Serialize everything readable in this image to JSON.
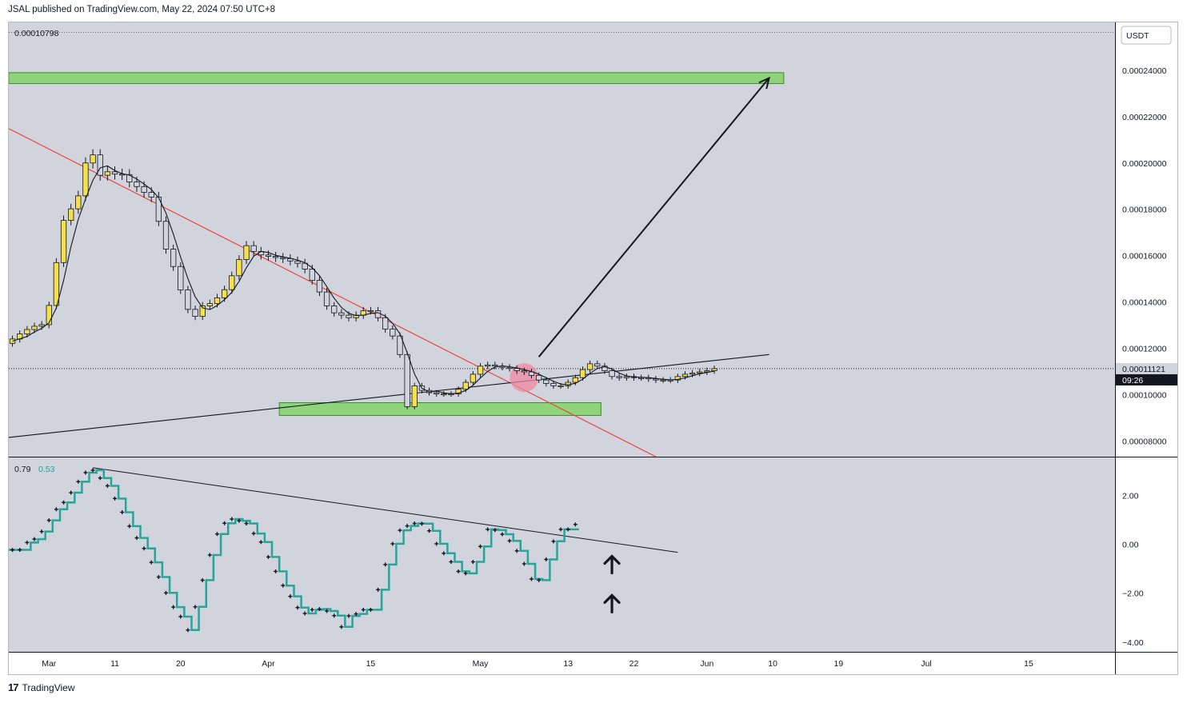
{
  "header": {
    "published_text": "JSAL published on TradingView.com, May 22, 2024 07:50 UTC+8"
  },
  "footer": {
    "brand": "TradingView",
    "logo_text": "17"
  },
  "colors": {
    "panel_bg": "#d1d4dc",
    "axis_bg": "#ffffff",
    "zone_fill": "#8fd47a",
    "zone_stroke": "#3a8f2a",
    "candle_up": "#f5e04a",
    "candle_down": "#d1d4dc",
    "trendline_red": "#f03a3a",
    "trendline_black": "#131722",
    "osc_line": "#26a69a",
    "circle": "#f08aa0"
  },
  "chart_data": {
    "type": "candlestick",
    "main_panel": {
      "currency": "USDT",
      "top_label": "0.00010798",
      "y_ticks": [
        "0.00024000",
        "0.00022000",
        "0.00020000",
        "0.00018000",
        "0.00016000",
        "0.00014000",
        "0.00012000",
        "0.00010000",
        "0.00008000"
      ],
      "y_tick_values": [
        0.00024,
        0.00022,
        0.0002,
        0.00018,
        0.00016,
        0.00014,
        0.00012,
        0.0001,
        8e-05
      ],
      "y_range": [
        7.32e-05,
        0.0002607
      ],
      "current_price": "0.00011121",
      "current_price_value": 0.00011121,
      "countdown": "09:26",
      "x_day_range": [
        0,
        108
      ],
      "candles_close": [
        0.000124,
        0.0001262,
        0.0001281,
        0.0001295,
        0.0001302,
        0.0001385,
        0.000157,
        0.0001752,
        0.0001802,
        0.0001858,
        0.0002,
        0.0002035,
        0.0001947,
        0.0001962,
        0.0001952,
        0.000195,
        0.0001918,
        0.0001898,
        0.0001873,
        0.0001853,
        0.0001748,
        0.0001628,
        0.0001553,
        0.0001452,
        0.0001368,
        0.0001338,
        0.0001383,
        0.0001393,
        0.0001418,
        0.0001453,
        0.0001513,
        0.0001583,
        0.0001643,
        0.0001618,
        0.0001603,
        0.0001597,
        0.0001592,
        0.0001587,
        0.0001577,
        0.0001567,
        0.0001542,
        0.0001493,
        0.0001443,
        0.0001383,
        0.0001353,
        0.0001343,
        0.0001332,
        0.0001343,
        0.0001362,
        0.0001362,
        0.0001332,
        0.0001283,
        0.0001253,
        0.0001173,
        9.48e-05,
        0.0001038,
        0.0001018,
        0.0001008,
        0.0001003,
        0.0001003,
        0.0001003,
        0.0001023,
        0.0001053,
        0.0001088,
        0.0001123,
        0.0001128,
        0.0001123,
        0.0001118,
        0.0001113,
        0.0001103,
        0.0001098,
        0.0001083,
        0.0001063,
        0.0001048,
        0.0001038,
        0.0001038,
        0.0001053,
        0.0001073,
        0.0001108,
        0.0001133,
        0.0001123,
        0.0001103,
        0.0001078,
        0.0001073,
        0.0001078,
        0.0001073,
        0.0001073,
        0.0001068,
        0.0001063,
        0.0001063,
        0.0001063,
        0.0001078,
        0.0001088,
        0.0001093,
        0.0001098,
        0.0001103,
        0.0001112
      ],
      "zones": [
        {
          "name": "resistance-zone",
          "y_top": 0.000239,
          "y_bottom": 0.0002343,
          "x_start_day": 0,
          "x_end_day": 106
        },
        {
          "name": "support-zone",
          "y_top": 9.65e-05,
          "y_bottom": 9.1e-05,
          "x_start_day": 37,
          "x_end_day": 81
        }
      ],
      "lines": [
        {
          "name": "descending-trendline",
          "x1_day": 0,
          "y1": 0.0002148,
          "x2_day": 88.5,
          "y2": 7.32e-05
        },
        {
          "name": "ascending-trendline",
          "x1_day": 0,
          "y1": 8.15e-05,
          "x2_day": 104,
          "y2": 0.0001173
        }
      ],
      "arrow": {
        "x1_day": 72.5,
        "y1": 0.0001163,
        "x2_day": 104,
        "y2": 0.0002367
      },
      "circle": {
        "x_day": 70.5,
        "y": 0.0001073
      }
    },
    "oscillator_panel": {
      "labels": [
        "0.79",
        "0.53"
      ],
      "y_ticks": [
        "2.00",
        "0.00",
        "−2.00",
        "−4.00"
      ],
      "y_tick_values": [
        2,
        0,
        -2,
        -4
      ],
      "y_range": [
        -4.4,
        3.55
      ],
      "step_values": [
        -0.23,
        -0.23,
        -0.23,
        0.07,
        0.21,
        0.52,
        0.98,
        1.43,
        1.71,
        2.11,
        2.56,
        2.93,
        3.03,
        2.71,
        2.39,
        1.87,
        1.31,
        0.74,
        0.26,
        -0.17,
        -0.74,
        -1.34,
        -1.99,
        -2.57,
        -2.96,
        -3.51,
        -2.56,
        -1.47,
        -0.44,
        0.42,
        0.86,
        1.03,
        0.96,
        0.85,
        0.44,
        0.09,
        -0.52,
        -1.11,
        -1.69,
        -2.13,
        -2.59,
        -2.83,
        -2.68,
        -2.65,
        -2.73,
        -2.92,
        -3.38,
        -2.93,
        -2.85,
        -2.68,
        -2.68,
        -1.86,
        -0.83,
        0.02,
        0.57,
        0.75,
        0.85,
        0.84,
        0.55,
        0.02,
        -0.37,
        -0.72,
        -1.11,
        -1.19,
        -0.72,
        -0.09,
        0.61,
        0.58,
        0.41,
        0.14,
        -0.27,
        -0.8,
        -1.42,
        -1.47,
        -0.62,
        0.12,
        0.61,
        0.61
      ],
      "dot_values": [
        -0.23,
        -0.23,
        0.07,
        0.21,
        0.52,
        0.98,
        1.43,
        1.71,
        2.11,
        2.56,
        2.93,
        3.03,
        2.71,
        2.39,
        1.87,
        1.31,
        0.74,
        0.26,
        -0.17,
        -0.74,
        -1.34,
        -1.99,
        -2.57,
        -2.96,
        -3.51,
        -2.56,
        -1.47,
        -0.44,
        0.42,
        0.86,
        1.03,
        0.96,
        0.85,
        0.44,
        0.09,
        -0.52,
        -1.11,
        -1.69,
        -2.13,
        -2.59,
        -2.83,
        -2.68,
        -2.65,
        -2.73,
        -2.92,
        -3.38,
        -2.93,
        -2.85,
        -2.68,
        -2.68,
        -1.86,
        -0.83,
        0.02,
        0.57,
        0.75,
        0.85,
        0.84,
        0.55,
        0.02,
        -0.37,
        -0.72,
        -1.11,
        -1.19,
        -0.72,
        -0.09,
        0.61,
        0.58,
        0.41,
        0.14,
        -0.27,
        -0.8,
        -1.42,
        -1.47,
        -0.62,
        0.12,
        0.61,
        0.61,
        0.81
      ],
      "divergence_line": {
        "x1_day": 11.5,
        "y1": 3.13,
        "x2_day": 91.5,
        "y2": -0.33
      },
      "up_arrows": [
        {
          "x_day": 82.5,
          "y": -0.85
        },
        {
          "x_day": 82.5,
          "y": -2.45
        }
      ]
    },
    "x_axis": {
      "ticks": [
        {
          "label": "Mar",
          "day": 5.5
        },
        {
          "label": "11",
          "day": 14.5
        },
        {
          "label": "20",
          "day": 23.5
        },
        {
          "label": "Apr",
          "day": 35.5
        },
        {
          "label": "15",
          "day": 49.5
        },
        {
          "label": "May",
          "day": 64.5
        },
        {
          "label": "13",
          "day": 76.5
        },
        {
          "label": "22",
          "day": 85.5
        },
        {
          "label": "Jun",
          "day": 95.5
        },
        {
          "label": "10",
          "day": 104.5
        },
        {
          "label": "19",
          "day": 113.5
        },
        {
          "label": "Jul",
          "day": 125.5
        },
        {
          "label": "15",
          "day": 139.5
        }
      ]
    }
  }
}
